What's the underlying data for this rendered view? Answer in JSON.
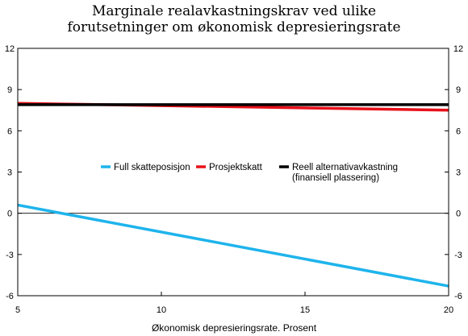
{
  "chart_data": {
    "type": "line",
    "title_lines": [
      "Marginale realavkastningskrav ved ulike",
      "forutsetninger om økonomisk depresieringsrate"
    ],
    "xlabel": "Økonomisk depresieringsrate. Prosent",
    "ylabel": "",
    "xlim": [
      5,
      20
    ],
    "ylim": [
      -6,
      12
    ],
    "x_ticks": [
      5,
      10,
      15,
      20
    ],
    "y_ticks": [
      12,
      9,
      6,
      3,
      0,
      -3,
      -6
    ],
    "y_tick_labels": [
      "12",
      "9",
      "6",
      "3",
      "0",
      "-3",
      "-6"
    ],
    "grid": false,
    "zero_line": true,
    "legend_position": "center",
    "series": [
      {
        "name": "Full skatteposisjon",
        "color": "#1eb4ec",
        "x": [
          5,
          20
        ],
        "y": [
          0.6,
          -5.3
        ]
      },
      {
        "name": "Prosjektskatt",
        "color": "#e8101a",
        "x": [
          5,
          20
        ],
        "y": [
          8.0,
          7.5
        ]
      },
      {
        "name_lines": [
          "Reell alternativavkastning",
          "(finansiell plassering)"
        ],
        "color": "#000000",
        "x": [
          5,
          20
        ],
        "y": [
          7.9,
          7.9
        ]
      }
    ]
  }
}
